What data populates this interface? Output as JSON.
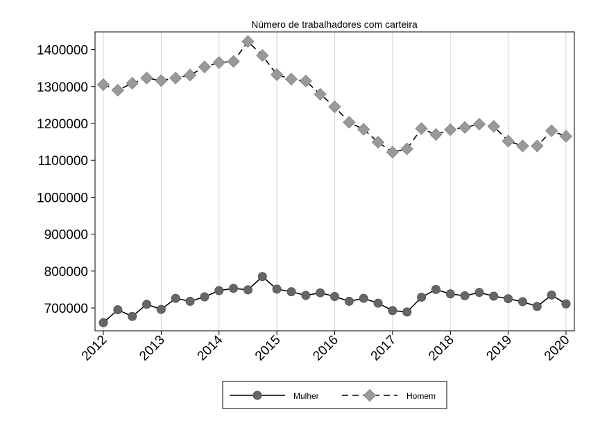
{
  "chart_data": {
    "type": "line",
    "title": "Número de trabalhadores com carteira",
    "xlabel": "",
    "ylabel": "",
    "x_ticks": [
      "2012",
      "2013",
      "2014",
      "2015",
      "2016",
      "2017",
      "2018",
      "2019",
      "2020"
    ],
    "y_ticks": [
      "700000",
      "800000",
      "900000",
      "1000000",
      "1100000",
      "1200000",
      "1300000",
      "1400000"
    ],
    "xlim": [
      2012,
      2020.15
    ],
    "ylim": [
      638000,
      1448000
    ],
    "x": [
      2012,
      2012.25,
      2012.5,
      2012.75,
      2013,
      2013.25,
      2013.5,
      2013.75,
      2014,
      2014.25,
      2014.5,
      2014.75,
      2015,
      2015.25,
      2015.5,
      2015.75,
      2016,
      2016.25,
      2016.5,
      2016.75,
      2017,
      2017.25,
      2017.5,
      2017.75,
      2018,
      2018.25,
      2018.5,
      2018.75,
      2019,
      2019.25,
      2019.5,
      2019.75,
      2020
    ],
    "series": [
      {
        "name": "Mulher",
        "values": [
          660000,
          695000,
          677000,
          710000,
          696000,
          726000,
          718000,
          730000,
          747000,
          753000,
          749000,
          785000,
          751000,
          744000,
          734000,
          741000,
          731000,
          718000,
          726000,
          713000,
          693000,
          689000,
          729000,
          750000,
          738000,
          733000,
          742000,
          732000,
          725000,
          717000,
          704000,
          735000,
          711000
        ]
      },
      {
        "name": "Homem",
        "values": [
          1305000,
          1290000,
          1309000,
          1323000,
          1316000,
          1323000,
          1331000,
          1353000,
          1365000,
          1368000,
          1422000,
          1384000,
          1332000,
          1320000,
          1315000,
          1279000,
          1245000,
          1203000,
          1184000,
          1149000,
          1122000,
          1131000,
          1186000,
          1170000,
          1183000,
          1189000,
          1198000,
          1192000,
          1152000,
          1139000,
          1139000,
          1180000,
          1165000
        ]
      }
    ],
    "grid": "vertical",
    "legend_position": "bottom",
    "colors": {
      "mulher_line": "#000000",
      "mulher_marker": "#666666",
      "homem_line": "#000000",
      "homem_marker": "#999999",
      "grid": "#d9d9d9",
      "axis": "#000000"
    }
  }
}
